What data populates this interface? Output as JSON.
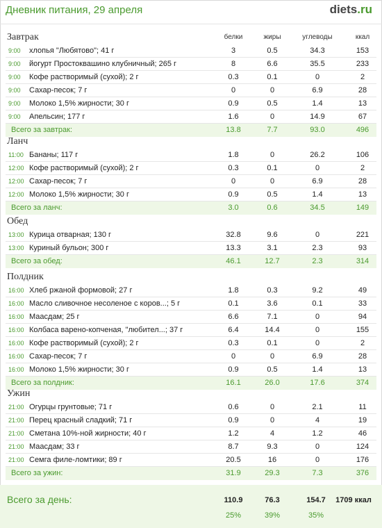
{
  "header": {
    "title": "Дневник питания, 29 апреля",
    "logo_part1": "diets",
    "logo_part2": ".ru"
  },
  "columns": {
    "protein": "белки",
    "fat": "жиры",
    "carbs": "углеводы",
    "kcal": "ккал"
  },
  "meals": [
    {
      "name": "Завтрак",
      "items": [
        {
          "time": "9:00",
          "food": "хлопья \"Любятово\"; 41 г",
          "p": "3",
          "f": "0.5",
          "c": "34.3",
          "k": "153"
        },
        {
          "time": "9:00",
          "food": "йогурт Простоквашино клубничный; 265 г",
          "p": "8",
          "f": "6.6",
          "c": "35.5",
          "k": "233"
        },
        {
          "time": "9:00",
          "food": "Кофе растворимый (сухой); 2 г",
          "p": "0.3",
          "f": "0.1",
          "c": "0",
          "k": "2"
        },
        {
          "time": "9:00",
          "food": "Сахар-песок; 7 г",
          "p": "0",
          "f": "0",
          "c": "6.9",
          "k": "28"
        },
        {
          "time": "9:00",
          "food": "Молоко 1,5% жирности; 30 г",
          "p": "0.9",
          "f": "0.5",
          "c": "1.4",
          "k": "13"
        },
        {
          "time": "9:00",
          "food": "Апельсин; 177 г",
          "p": "1.6",
          "f": "0",
          "c": "14.9",
          "k": "67"
        }
      ],
      "total_label": "Всего за завтрак:",
      "total": {
        "p": "13.8",
        "f": "7.7",
        "c": "93.0",
        "k": "496"
      }
    },
    {
      "name": "Ланч",
      "items": [
        {
          "time": "11:00",
          "food": "Бананы; 117 г",
          "p": "1.8",
          "f": "0",
          "c": "26.2",
          "k": "106"
        },
        {
          "time": "12:00",
          "food": "Кофе растворимый (сухой); 2 г",
          "p": "0.3",
          "f": "0.1",
          "c": "0",
          "k": "2"
        },
        {
          "time": "12:00",
          "food": "Сахар-песок; 7 г",
          "p": "0",
          "f": "0",
          "c": "6.9",
          "k": "28"
        },
        {
          "time": "12:00",
          "food": "Молоко 1,5% жирности; 30 г",
          "p": "0.9",
          "f": "0.5",
          "c": "1.4",
          "k": "13"
        }
      ],
      "total_label": "Всего за ланч:",
      "total": {
        "p": "3.0",
        "f": "0.6",
        "c": "34.5",
        "k": "149"
      }
    },
    {
      "name": "Обед",
      "items": [
        {
          "time": "13:00",
          "food": "Курица отварная; 130 г",
          "p": "32.8",
          "f": "9.6",
          "c": "0",
          "k": "221"
        },
        {
          "time": "13:00",
          "food": "Куриный бульон; 300 г",
          "p": "13.3",
          "f": "3.1",
          "c": "2.3",
          "k": "93"
        }
      ],
      "total_label": "Всего за обед:",
      "total": {
        "p": "46.1",
        "f": "12.7",
        "c": "2.3",
        "k": "314"
      }
    },
    {
      "name": "Полдник",
      "items": [
        {
          "time": "16:00",
          "food": "Хлеб ржаной формовой; 27 г",
          "p": "1.8",
          "f": "0.3",
          "c": "9.2",
          "k": "49"
        },
        {
          "time": "16:00",
          "food": "Масло сливочное несоленое с коров...; 5 г",
          "p": "0.1",
          "f": "3.6",
          "c": "0.1",
          "k": "33"
        },
        {
          "time": "16:00",
          "food": "Маасдам; 25 г",
          "p": "6.6",
          "f": "7.1",
          "c": "0",
          "k": "94"
        },
        {
          "time": "16:00",
          "food": "Колбаса варено-копченая, \"любител...; 37 г",
          "p": "6.4",
          "f": "14.4",
          "c": "0",
          "k": "155"
        },
        {
          "time": "16:00",
          "food": "Кофе растворимый (сухой); 2 г",
          "p": "0.3",
          "f": "0.1",
          "c": "0",
          "k": "2"
        },
        {
          "time": "16:00",
          "food": "Сахар-песок; 7 г",
          "p": "0",
          "f": "0",
          "c": "6.9",
          "k": "28"
        },
        {
          "time": "16:00",
          "food": "Молоко 1,5% жирности; 30 г",
          "p": "0.9",
          "f": "0.5",
          "c": "1.4",
          "k": "13"
        }
      ],
      "total_label": "Всего за полдник:",
      "total": {
        "p": "16.1",
        "f": "26.0",
        "c": "17.6",
        "k": "374"
      }
    },
    {
      "name": "Ужин",
      "items": [
        {
          "time": "21:00",
          "food": "Огурцы грунтовые; 71 г",
          "p": "0.6",
          "f": "0",
          "c": "2.1",
          "k": "11"
        },
        {
          "time": "21:00",
          "food": "Перец красный сладкий; 71 г",
          "p": "0.9",
          "f": "0",
          "c": "4",
          "k": "19"
        },
        {
          "time": "21:00",
          "food": "Сметана 10%-ной жирности; 40 г",
          "p": "1.2",
          "f": "4",
          "c": "1.2",
          "k": "46"
        },
        {
          "time": "21:00",
          "food": "Маасдам; 33 г",
          "p": "8.7",
          "f": "9.3",
          "c": "0",
          "k": "124"
        },
        {
          "time": "21:00",
          "food": "Семга филе-ломтики; 89 г",
          "p": "20.5",
          "f": "16",
          "c": "0",
          "k": "176"
        }
      ],
      "total_label": "Всего за ужин:",
      "total": {
        "p": "31.9",
        "f": "29.3",
        "c": "7.3",
        "k": "376"
      }
    }
  ],
  "day": {
    "label": "Всего за день:",
    "p": "110.9",
    "f": "76.3",
    "c": "154.7",
    "k": "1709 ккал",
    "p_pct": "25%",
    "f_pct": "39%",
    "c_pct": "35%"
  }
}
